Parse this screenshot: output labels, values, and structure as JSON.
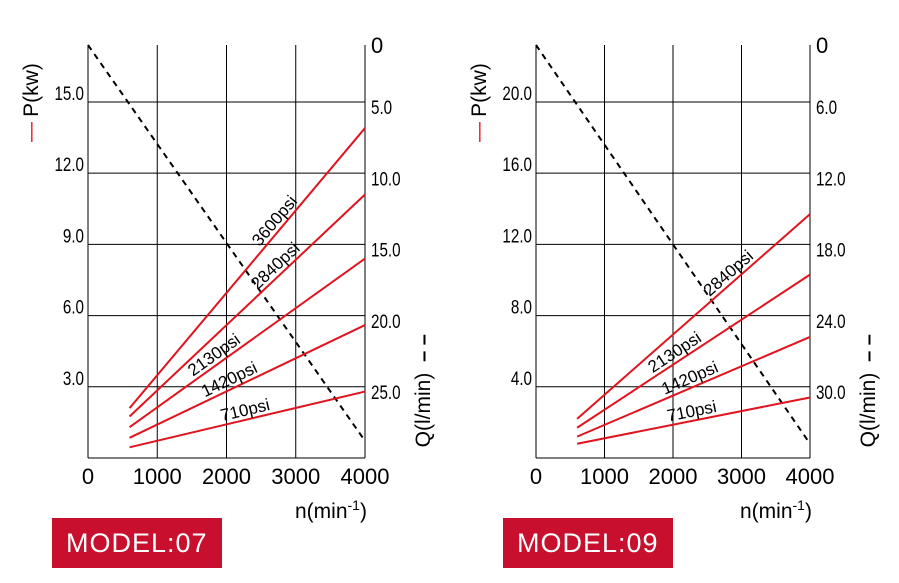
{
  "colors": {
    "power": "#e0141e",
    "flow": "#000000",
    "grid": "#000000",
    "badge": "#c8102e"
  },
  "chart_data": [
    {
      "type": "line",
      "model_label": "MODEL:07",
      "left_axis_label": "P(kw)",
      "left_axis_marker": "—",
      "right_axis_label": "Q(l/min)",
      "right_axis_marker": "– –",
      "x_label": "n(min",
      "x_label_sup": "-1",
      "x_label_end": ")",
      "x_ticks": [
        "0",
        "1000",
        "2000",
        "3000",
        "4000"
      ],
      "x_range": [
        0,
        4000
      ],
      "y_left_ticks": [
        "3.0",
        "6.0",
        "9.0",
        "12.0",
        "15.0"
      ],
      "y_left_tick_values": [
        3,
        6,
        9,
        12,
        15
      ],
      "y_left_range": [
        0,
        17.4
      ],
      "y_right_ticks": [
        "0",
        "5.0",
        "10.0",
        "15.0",
        "20.0",
        "25.0"
      ],
      "y_right_tick_values": [
        0,
        5,
        10,
        15,
        20,
        25
      ],
      "y_right_range": [
        29,
        0
      ],
      "grid": true,
      "power_series": [
        {
          "name": "3600psi",
          "x": [
            600,
            4000
          ],
          "y": [
            2.1,
            13.9
          ],
          "label_at_x": 2800
        },
        {
          "name": "2840psi",
          "x": [
            600,
            4000
          ],
          "y": [
            1.75,
            11.1
          ],
          "label_at_x": 2800
        },
        {
          "name": "2130psi",
          "x": [
            600,
            4000
          ],
          "y": [
            1.3,
            8.4
          ],
          "label_at_x": 1900
        },
        {
          "name": "1420psi",
          "x": [
            600,
            4000
          ],
          "y": [
            0.85,
            5.6
          ],
          "label_at_x": 2100
        },
        {
          "name": "710psi",
          "x": [
            600,
            4000
          ],
          "y": [
            0.45,
            2.8
          ],
          "label_at_x": 2300
        }
      ],
      "flow_series": {
        "x": [
          0,
          4000
        ],
        "y": [
          0,
          27.8
        ]
      }
    },
    {
      "type": "line",
      "model_label": "MODEL:09",
      "left_axis_label": "P(kw)",
      "left_axis_marker": "—",
      "right_axis_label": "Q(l/min)",
      "right_axis_marker": "– –",
      "x_label": "n(min",
      "x_label_sup": "-1",
      "x_label_end": ")",
      "x_ticks": [
        "0",
        "1000",
        "2000",
        "3000",
        "4000"
      ],
      "x_range": [
        0,
        4000
      ],
      "y_left_ticks": [
        "4.0",
        "8.0",
        "12.0",
        "16.0",
        "20.0"
      ],
      "y_left_tick_values": [
        4,
        8,
        12,
        16,
        20
      ],
      "y_left_range": [
        0,
        23.2
      ],
      "y_right_ticks": [
        "0",
        "6.0",
        "12.0",
        "18.0",
        "24.0",
        "30.0"
      ],
      "y_right_tick_values": [
        0,
        6,
        12,
        18,
        24,
        30
      ],
      "y_right_range": [
        34.8,
        0
      ],
      "grid": true,
      "power_series": [
        {
          "name": "2840psi",
          "x": [
            600,
            4000
          ],
          "y": [
            2.2,
            13.7
          ],
          "label_at_x": 2900
        },
        {
          "name": "2130psi",
          "x": [
            600,
            4000
          ],
          "y": [
            1.7,
            10.3
          ],
          "label_at_x": 2100
        },
        {
          "name": "1420psi",
          "x": [
            600,
            4000
          ],
          "y": [
            1.2,
            6.8
          ],
          "label_at_x": 2300
        },
        {
          "name": "710psi",
          "x": [
            600,
            4000
          ],
          "y": [
            0.8,
            3.4
          ],
          "label_at_x": 2300
        }
      ],
      "flow_series": {
        "x": [
          0,
          4000
        ],
        "y": [
          0,
          33.6
        ]
      }
    }
  ]
}
